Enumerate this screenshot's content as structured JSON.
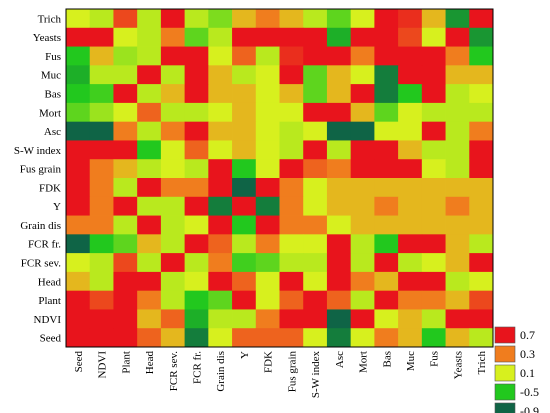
{
  "chart_data": {
    "type": "heatmap",
    "title": "",
    "xlabel": "",
    "ylabel": "",
    "rows": [
      "Trich",
      "Yeasts",
      "Fus",
      "Muc",
      "Bas",
      "Mort",
      "Asc",
      "S-W index",
      "Fus grain",
      "FDK",
      "Y",
      "Grain dis",
      "FCR fr.",
      "FCR sev.",
      "Head",
      "Plant",
      "NDVI",
      "Seed"
    ],
    "columns": [
      "Seed",
      "NDVI",
      "Plant",
      "Head",
      "FCR sev.",
      "FCR fr.",
      "Grain dis",
      "Y",
      "FDK",
      "Fus grain",
      "S-W index",
      "Asc",
      "Mort",
      "Bas",
      "Muc",
      "Fus",
      "Yeasts",
      "Trich"
    ],
    "color_scale": {
      "levels": [
        0.7,
        0.3,
        0.1,
        -0.5,
        -0.9
      ],
      "colors": [
        "#e8141c",
        "#f07d1e",
        "#d7f01e",
        "#22c81e",
        "#0f6446"
      ],
      "labels": [
        "0.7",
        "0.3",
        "0.1",
        "-0.5",
        "-0.9"
      ]
    },
    "values": [
      [
        0.1,
        0.0,
        0.5,
        0.0,
        0.8,
        0.0,
        -0.2,
        0.2,
        0.3,
        0.2,
        0.0,
        -0.3,
        0.1,
        0.8,
        0.6,
        0.2,
        -0.7,
        0.8
      ],
      [
        0.8,
        0.9,
        0.1,
        0.0,
        0.3,
        -0.3,
        0.0,
        0.8,
        0.8,
        0.9,
        0.9,
        -0.6,
        0.8,
        0.9,
        0.5,
        0.1,
        0.8,
        -0.7
      ],
      [
        -0.5,
        0.2,
        -0.1,
        0.0,
        0.8,
        0.8,
        0.1,
        0.4,
        0.0,
        0.6,
        0.8,
        0.9,
        0.3,
        0.9,
        0.9,
        0.9,
        0.3,
        -0.5
      ],
      [
        -0.6,
        0.0,
        0.0,
        0.8,
        0.0,
        0.8,
        0.2,
        0.0,
        0.1,
        0.8,
        -0.3,
        0.2,
        0.1,
        -0.8,
        0.8,
        0.9,
        0.2,
        0.2
      ],
      [
        -0.5,
        -0.4,
        0.8,
        0.0,
        0.2,
        0.8,
        0.2,
        0.2,
        0.1,
        0.2,
        -0.3,
        0.2,
        0.8,
        -0.8,
        -0.5,
        0.8,
        0.0,
        0.1
      ],
      [
        -0.3,
        -0.1,
        0.1,
        0.4,
        0.0,
        0.0,
        0.1,
        0.2,
        0.1,
        0.1,
        0.8,
        0.8,
        0.2,
        -0.3,
        0.1,
        0.0,
        0.0,
        0.0
      ],
      [
        -0.9,
        -0.9,
        0.3,
        0.0,
        0.3,
        0.9,
        0.2,
        0.2,
        0.1,
        0.0,
        0.1,
        -0.9,
        -0.9,
        0.1,
        0.1,
        0.8,
        0.0,
        0.3
      ],
      [
        0.8,
        0.9,
        0.8,
        -0.5,
        0.1,
        0.4,
        0.1,
        0.2,
        0.1,
        0.0,
        0.8,
        0.0,
        0.8,
        0.9,
        0.2,
        0.0,
        0.0,
        0.8
      ],
      [
        0.8,
        0.3,
        0.2,
        0.0,
        0.1,
        0.0,
        0.9,
        -0.5,
        0.1,
        0.8,
        0.4,
        0.3,
        0.9,
        0.8,
        0.9,
        0.1,
        0.0,
        0.9
      ],
      [
        0.8,
        0.3,
        0.0,
        0.9,
        0.3,
        0.3,
        0.9,
        -0.9,
        0.9,
        0.3,
        0.1,
        0.2,
        0.2,
        0.2,
        0.2,
        0.2,
        0.2,
        0.2
      ],
      [
        0.8,
        0.3,
        0.8,
        0.0,
        0.0,
        0.9,
        -0.8,
        0.9,
        -0.8,
        0.3,
        0.1,
        0.2,
        0.2,
        0.3,
        0.2,
        0.2,
        0.3,
        0.2
      ],
      [
        0.3,
        0.3,
        0.0,
        0.8,
        0.0,
        0.1,
        0.9,
        -0.5,
        0.9,
        0.3,
        0.3,
        0.1,
        0.2,
        0.2,
        0.2,
        0.2,
        0.2,
        0.2
      ],
      [
        -0.9,
        -0.5,
        -0.3,
        0.2,
        0.0,
        0.9,
        0.4,
        0.0,
        0.3,
        0.1,
        0.1,
        0.9,
        0.0,
        -0.5,
        0.9,
        0.9,
        0.2,
        0.0
      ],
      [
        0.1,
        0.0,
        0.5,
        0.0,
        0.9,
        0.0,
        0.3,
        -0.4,
        -0.3,
        0.0,
        0.0,
        0.8,
        0.0,
        0.8,
        0.0,
        0.1,
        0.2,
        0.8
      ],
      [
        0.2,
        0.0,
        0.8,
        0.9,
        0.0,
        0.1,
        0.8,
        0.4,
        0.1,
        0.8,
        0.1,
        0.9,
        0.3,
        0.2,
        0.9,
        0.8,
        0.0,
        0.1
      ],
      [
        0.9,
        0.5,
        0.9,
        0.3,
        0.0,
        -0.5,
        -0.3,
        0.8,
        0.1,
        0.4,
        0.8,
        0.4,
        0.0,
        0.8,
        0.3,
        0.3,
        0.2,
        0.5
      ],
      [
        0.9,
        0.9,
        0.8,
        0.2,
        0.4,
        -0.6,
        0.0,
        0.0,
        0.3,
        0.9,
        0.8,
        -0.9,
        0.8,
        0.1,
        0.2,
        0.0,
        0.8,
        0.9
      ],
      [
        0.9,
        0.8,
        0.9,
        0.4,
        0.2,
        -0.8,
        0.1,
        0.4,
        0.4,
        0.4,
        0.1,
        -0.8,
        0.1,
        0.3,
        0.2,
        -0.5,
        0.2,
        0.0
      ]
    ]
  }
}
